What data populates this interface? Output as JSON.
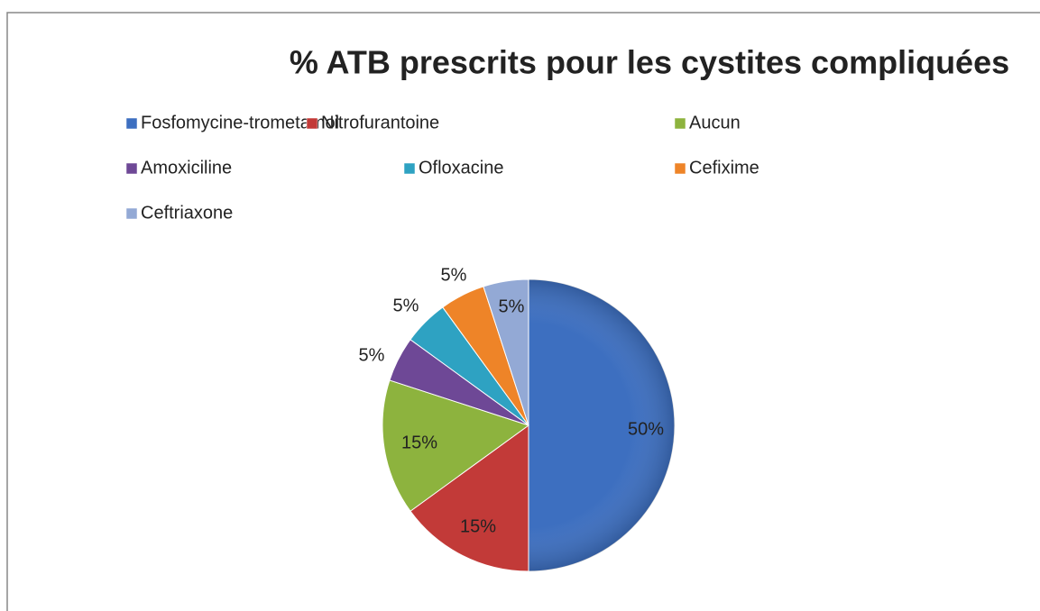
{
  "chart_data": {
    "type": "pie",
    "title": "% ATB prescrits pour les cystites compliquées",
    "categories": [
      "Fosfomycine-trometamol",
      "Nitrofurantoine",
      "Aucun",
      "Amoxiciline",
      "Ofloxacine",
      "Cefixime",
      "Ceftriaxone"
    ],
    "values": [
      50,
      15,
      15,
      5,
      5,
      5,
      5
    ],
    "value_labels": [
      "50%",
      "15%",
      "15%",
      "5%",
      "5%",
      "5%",
      "5%"
    ],
    "colors": [
      "#3d6fc0",
      "#c23a38",
      "#8db33e",
      "#6e4896",
      "#2ea2c2",
      "#ee8428",
      "#93a9d5"
    ],
    "legend": "top"
  }
}
